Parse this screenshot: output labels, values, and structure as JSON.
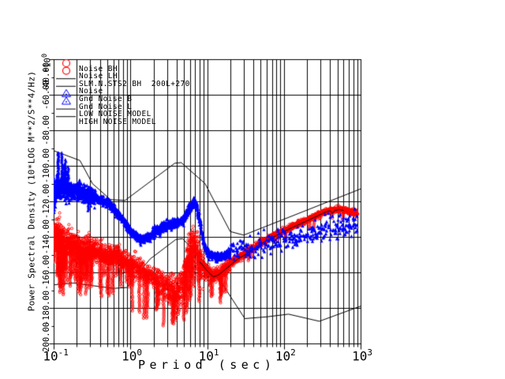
{
  "window": {
    "background": "#ffffff",
    "ink": "#000000"
  },
  "axes": {
    "x": {
      "title": "Period (sec)",
      "scale": "log",
      "tick_base": "10",
      "tick_exponents": [
        "-1",
        "0",
        "1",
        "2",
        "3"
      ]
    },
    "y": {
      "title": "Power Spectral Density (10*LOG M**2/S**4/Hz)",
      "scale_prefix": "*10",
      "scale_exponent": "0",
      "tick_labels": [
        "-40.00",
        "-60.00",
        "-80.00",
        "-100.00",
        "-120.00",
        "-140.00",
        "-160.00",
        "-180.00",
        "-200.00"
      ]
    }
  },
  "legend": {
    "items": [
      {
        "label": "Noise BH",
        "symbol": "circle",
        "color": "#ff0000"
      },
      {
        "label": "Noise LH",
        "symbol": "circle",
        "color": "#ff0000"
      },
      {
        "label": "SLM.N.STS2 BH  200L+270",
        "symbol": "line",
        "color": "#000000"
      },
      {
        "label": "Noise",
        "symbol": "line",
        "color": "#000000"
      },
      {
        "label": "Gnd Noise B",
        "symbol": "triangle",
        "color": "#0000ff"
      },
      {
        "label": "Gnd Noise L",
        "symbol": "triangle",
        "color": "#0000ff"
      },
      {
        "label": "LOW NOISE MODEL",
        "symbol": "line",
        "color": "#000000"
      },
      {
        "label": "HIGH NOISE MODEL",
        "symbol": "line",
        "color": "#000000"
      }
    ]
  },
  "chart_data": {
    "type": "scatter",
    "title": "",
    "xlabel": "Period (sec)",
    "ylabel": "Power Spectral Density (10*LOG M**2/S**4/Hz) *10^0",
    "x_scale": "log",
    "x_range_sec": [
      0.1,
      1000
    ],
    "y_range_db": [
      -200,
      -40
    ],
    "y_tick_step": 20,
    "grid": true,
    "legend_position": "top-left-inside",
    "series": [
      {
        "name": "Noise BH/LH (station horizontal noise, red circles)",
        "color": "#ff0000",
        "marker": "circle",
        "centerline": [
          [
            0.1,
            -139
          ],
          [
            0.12,
            -141
          ],
          [
            0.14,
            -145
          ],
          [
            0.17,
            -143
          ],
          [
            0.2,
            -146
          ],
          [
            0.25,
            -147
          ],
          [
            0.3,
            -147
          ],
          [
            0.4,
            -149
          ],
          [
            0.5,
            -151
          ],
          [
            0.6,
            -150
          ],
          [
            0.8,
            -153
          ],
          [
            1.0,
            -156
          ],
          [
            1.3,
            -158
          ],
          [
            1.7,
            -161
          ],
          [
            2.2,
            -164
          ],
          [
            3,
            -168
          ],
          [
            4,
            -171
          ],
          [
            4.8,
            -168
          ],
          [
            5.5,
            -152
          ],
          [
            6.2,
            -146
          ],
          [
            6.8,
            -144
          ],
          [
            7.5,
            -149
          ],
          [
            8.5,
            -156
          ],
          [
            10,
            -159
          ],
          [
            12,
            -162
          ],
          [
            14,
            -161
          ],
          [
            17,
            -158
          ],
          [
            20,
            -155
          ],
          [
            25,
            -152
          ],
          [
            30,
            -150
          ],
          [
            40,
            -146
          ],
          [
            50,
            -143.5
          ],
          [
            70,
            -140
          ],
          [
            100,
            -136.5
          ],
          [
            140,
            -133.5
          ],
          [
            200,
            -130.5
          ],
          [
            280,
            -127.5
          ],
          [
            400,
            -125
          ],
          [
            500,
            -124.5
          ],
          [
            600,
            -124.8
          ],
          [
            700,
            -125.5
          ],
          [
            850,
            -126.5
          ]
        ],
        "scatter_regions": [
          {
            "t": [
              0.1,
              0.14
            ],
            "sigma": 5,
            "per_col": 7,
            "spike_p": 0.35,
            "spike_db": [
              10,
              30
            ],
            "spike_dir": "down"
          },
          {
            "t": [
              0.14,
              0.35
            ],
            "sigma": 3.5,
            "per_col": 5,
            "spike_p": 0.22,
            "spike_db": [
              8,
              28
            ],
            "spike_dir": "down"
          },
          {
            "t": [
              0.35,
              1.1
            ],
            "sigma": 2.8,
            "per_col": 4,
            "spike_p": 0.15,
            "spike_db": [
              8,
              26
            ],
            "spike_dir": "down"
          },
          {
            "t": [
              1.1,
              2.2
            ],
            "sigma": 3,
            "per_col": 3,
            "spike_p": 0.12,
            "spike_db": [
              10,
              30
            ],
            "spike_dir": "down"
          },
          {
            "t": [
              2.2,
              4.6
            ],
            "sigma": 4.5,
            "per_col": 3,
            "spike_p": 0.14,
            "spike_db": [
              8,
              24
            ],
            "spike_dir": "down"
          },
          {
            "t": [
              4.6,
              9
            ],
            "sigma": 5,
            "per_col": 4,
            "spike_p": 0.22,
            "spike_db": [
              10,
              34
            ],
            "spike_dir": "down"
          },
          {
            "t": [
              9,
              20
            ],
            "sigma": 2,
            "per_col": 3,
            "spike_p": 0.06,
            "spike_db": [
              6,
              18
            ],
            "spike_dir": "down"
          },
          {
            "t": [
              20,
              60
            ],
            "sigma": 1,
            "per_col": 3,
            "spike_p": 0.02,
            "spike_db": [
              4,
              20
            ],
            "spike_dir": "down"
          },
          {
            "t": [
              60,
              900
            ],
            "sigma": 0.8,
            "per_col": 3,
            "spike_p": 0.015,
            "spike_db": [
              2,
              8
            ],
            "spike_dir": "down"
          }
        ]
      },
      {
        "name": "Gnd Noise B/L (ground noise reference, blue triangles)",
        "color": "#0000ff",
        "marker": "triangle",
        "centerline": [
          [
            0.1,
            -117
          ],
          [
            0.11,
            -114
          ],
          [
            0.13,
            -112.5
          ],
          [
            0.15,
            -113
          ],
          [
            0.18,
            -114
          ],
          [
            0.22,
            -114.5
          ],
          [
            0.27,
            -116
          ],
          [
            0.33,
            -117.5
          ],
          [
            0.4,
            -119
          ],
          [
            0.5,
            -121
          ],
          [
            0.6,
            -124
          ],
          [
            0.75,
            -129
          ],
          [
            0.9,
            -134
          ],
          [
            1.1,
            -139
          ],
          [
            1.4,
            -141.5
          ],
          [
            1.8,
            -140
          ],
          [
            2.2,
            -136.5
          ],
          [
            2.8,
            -134
          ],
          [
            3.5,
            -132.5
          ],
          [
            4.5,
            -131.5
          ],
          [
            5.2,
            -129
          ],
          [
            6,
            -123
          ],
          [
            6.8,
            -120.5
          ],
          [
            7.3,
            -122
          ],
          [
            8,
            -131
          ],
          [
            9,
            -143
          ],
          [
            10,
            -149
          ],
          [
            12,
            -151
          ],
          [
            15,
            -151.5
          ],
          [
            18,
            -150
          ],
          [
            22,
            -148.5
          ],
          [
            28,
            -147
          ],
          [
            40,
            -146
          ],
          [
            60,
            -144.5
          ],
          [
            90,
            -142.5
          ],
          [
            130,
            -141
          ],
          [
            200,
            -139
          ],
          [
            300,
            -137
          ],
          [
            450,
            -135
          ],
          [
            650,
            -134
          ],
          [
            800,
            -133.5
          ]
        ],
        "scatter_regions": [
          {
            "t": [
              0.1,
              0.106
            ],
            "sigma": 4.5,
            "per_col": 10,
            "spike_p": 0,
            "spike_db": [
              0,
              0
            ],
            "spike_dir": "none"
          },
          {
            "t": [
              0.106,
              0.16
            ],
            "sigma": 2.8,
            "per_col": 5,
            "spike_p": 0.3,
            "spike_db": [
              8,
              29
            ],
            "spike_dir": "up"
          },
          {
            "t": [
              0.16,
              0.35
            ],
            "sigma": 2.2,
            "per_col": 5,
            "spike_p": 0.06,
            "spike_db": [
              4,
              10
            ],
            "spike_dir": "both"
          },
          {
            "t": [
              0.35,
              8
            ],
            "sigma": 1.1,
            "per_col": 4,
            "spike_p": 0.01,
            "spike_db": [
              2,
              5
            ],
            "spike_dir": "both"
          },
          {
            "t": [
              8,
              20
            ],
            "sigma": 1.2,
            "per_col": 3,
            "spike_p": 0,
            "spike_db": [
              0,
              0
            ],
            "spike_dir": "none"
          },
          {
            "t": [
              20,
              900
            ],
            "sigma": 3,
            "per_col": 0.7,
            "spike_p": 0,
            "spike_db": [
              0,
              0
            ],
            "spike_dir": "none"
          }
        ]
      },
      {
        "name": "SLM.N.STS2 BH 200L+270 (station model line)",
        "color": "#000000",
        "type": "line",
        "points": [
          [
            8,
            -154
          ],
          [
            10,
            -159
          ],
          [
            12,
            -162.5
          ],
          [
            14,
            -161.5
          ],
          [
            17,
            -158.5
          ],
          [
            20,
            -156
          ],
          [
            25,
            -152.5
          ],
          [
            30,
            -150.5
          ],
          [
            40,
            -147
          ],
          [
            50,
            -144
          ],
          [
            70,
            -140.5
          ],
          [
            100,
            -137
          ],
          [
            140,
            -134
          ],
          [
            200,
            -131
          ],
          [
            280,
            -128
          ],
          [
            350,
            -126
          ],
          [
            400,
            -125.2
          ],
          [
            430,
            -126.8
          ],
          [
            460,
            -125.2
          ],
          [
            520,
            -124.6
          ],
          [
            600,
            -125
          ]
        ]
      },
      {
        "name": "LOW NOISE MODEL",
        "color": "#000000",
        "type": "line",
        "points": [
          [
            0.1,
            -167
          ],
          [
            0.18,
            -166
          ],
          [
            0.6,
            -169
          ],
          [
            0.9,
            -168.5
          ],
          [
            1.8,
            -152.5
          ],
          [
            3.9,
            -141.5
          ],
          [
            4.8,
            -141
          ],
          [
            9.5,
            -155
          ],
          [
            13.5,
            -162
          ],
          [
            31,
            -186
          ],
          [
            60,
            -185
          ],
          [
            115,
            -183.5
          ],
          [
            290,
            -187.5
          ],
          [
            1000,
            -179
          ]
        ]
      },
      {
        "name": "HIGH NOISE MODEL",
        "color": "#000000",
        "type": "line",
        "points": [
          [
            0.1,
            -91.5
          ],
          [
            0.22,
            -97
          ],
          [
            0.32,
            -110
          ],
          [
            0.55,
            -119
          ],
          [
            0.85,
            -119.5
          ],
          [
            3.8,
            -98.5
          ],
          [
            4.6,
            -98.2
          ],
          [
            9.4,
            -110
          ],
          [
            20,
            -137
          ],
          [
            30,
            -139
          ],
          [
            1000,
            -113
          ]
        ]
      }
    ]
  }
}
